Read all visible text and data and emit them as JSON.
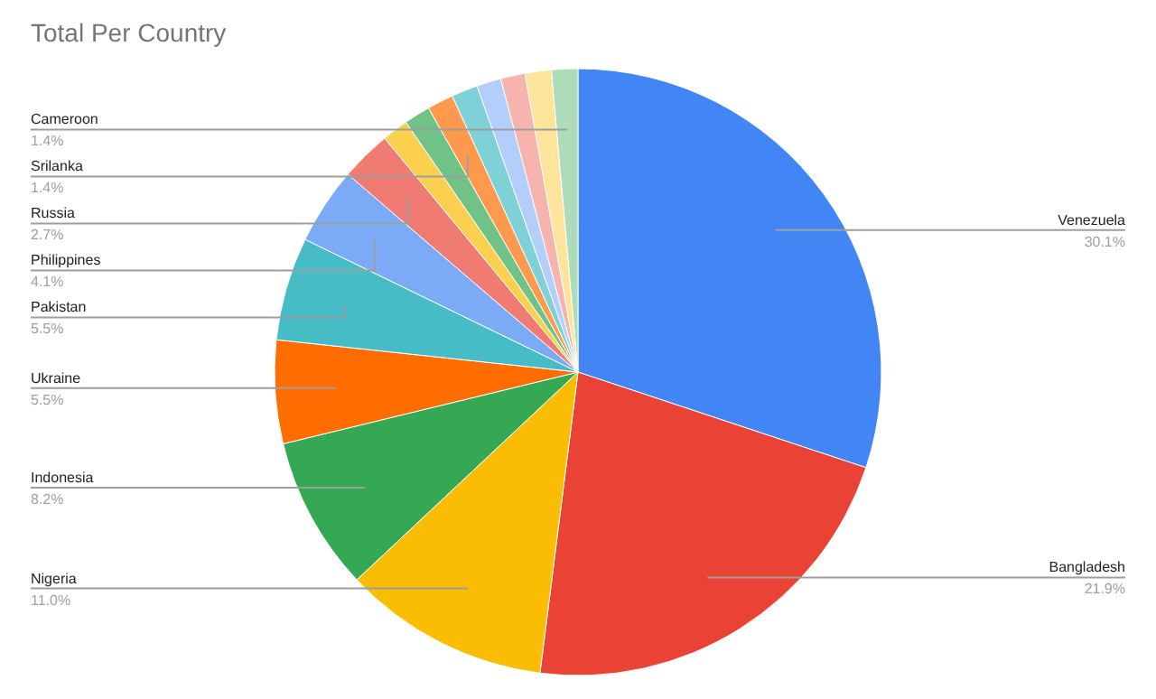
{
  "chart_data": {
    "type": "pie",
    "title": "Total Per Country",
    "categories": [
      "Venezuela",
      "Bangladesh",
      "Nigeria",
      "Indonesia",
      "Ukraine",
      "Pakistan",
      "Philippines",
      "Russia",
      null,
      null,
      "Srilanka",
      null,
      null,
      null,
      null,
      "Cameroon"
    ],
    "values": [
      30.1,
      21.9,
      11.0,
      8.2,
      5.5,
      5.5,
      4.1,
      2.7,
      1.4,
      1.4,
      1.4,
      1.4,
      1.3,
      1.3,
      1.4,
      1.4
    ],
    "value_labels": [
      "30.1%",
      "21.9%",
      "11.0%",
      "8.2%",
      "5.5%",
      "5.5%",
      "4.1%",
      "2.7%",
      null,
      null,
      "1.4%",
      null,
      null,
      null,
      null,
      "1.4%"
    ],
    "colors": [
      "#4285f4",
      "#ea4335",
      "#fbbc04",
      "#34a853",
      "#ff6d01",
      "#46bdc6",
      "#7baaf7",
      "#f07b72",
      "#fcd04f",
      "#71c287",
      "#ff994d",
      "#7ed1d7",
      "#b3cefb",
      "#f7b4ae",
      "#fde49b",
      "#aedcba"
    ]
  }
}
